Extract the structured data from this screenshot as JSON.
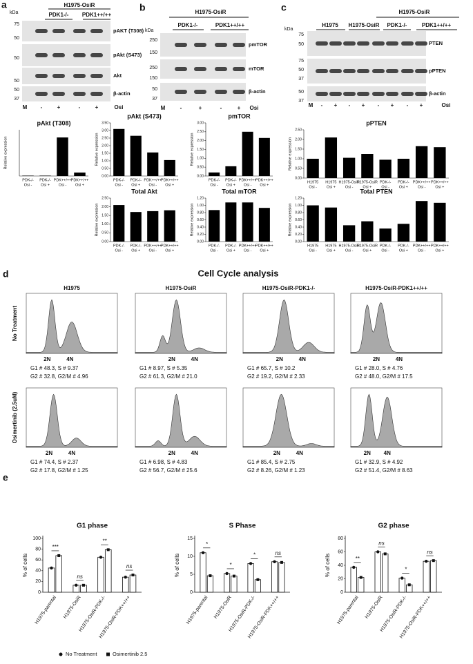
{
  "blots": {
    "panel_a": {
      "letter": "a",
      "cell_line": "H1975-OsiR",
      "groups": [
        "PDK1-/-",
        "PDK1++/++"
      ],
      "kda": "kDa",
      "markers": [
        "75",
        "50",
        "50",
        "50",
        "50",
        "37"
      ],
      "bands": [
        "pAKT (T308)",
        "pAkt (S473)",
        "Akt",
        "β-actin"
      ],
      "lane_m": "M",
      "lanes": [
        "-",
        "+",
        "-",
        "+"
      ],
      "treatment": "Osi"
    },
    "panel_b": {
      "letter": "b",
      "cell_line": "H1975-OsiR",
      "groups": [
        "PDK1-/-",
        "PDK1++/++"
      ],
      "kda": "kDa",
      "markers": [
        "250",
        "150",
        "250",
        "150",
        "50",
        "37"
      ],
      "bands": [
        "pmTOR",
        "mTOR",
        "β-actin"
      ],
      "lane_m": "M",
      "lanes": [
        "-",
        "+",
        "-",
        "+"
      ],
      "treatment": "Osi"
    },
    "panel_c": {
      "letter": "c",
      "cell_line": "H1975-OsiR",
      "groups": [
        "H1975",
        "H1975-OsiR",
        "PDK1-/-",
        "PDK1++/++"
      ],
      "kda": "kDa",
      "markers": [
        "75",
        "50",
        "75",
        "50",
        "37",
        "50",
        "37"
      ],
      "bands": [
        "PTEN",
        "pPTEN",
        "β-actin"
      ],
      "lane_m": "M",
      "lanes": [
        "-",
        "+",
        "-",
        "+",
        "-",
        "+",
        "-",
        "+"
      ],
      "treatment": "Osi"
    }
  },
  "chart_data": [
    {
      "type": "bar",
      "title": "pAkt (T308)",
      "y_label": "Relative expression",
      "categories": [
        [
          "PDK-/-",
          "Osi -"
        ],
        [
          "PDK-/-",
          "Osi +"
        ],
        [
          "PDK++/++",
          "Osi -"
        ],
        [
          "PDK++/++",
          "Osi +"
        ]
      ],
      "values": [
        0.01,
        0.01,
        1.0,
        0.09
      ],
      "color": "#000000",
      "ylim": [
        0,
        1.2
      ]
    },
    {
      "type": "bar",
      "title": "pAkt (S473)",
      "y_label": "Relative expression",
      "categories": [
        [
          "PDK-/-",
          "Osi -"
        ],
        [
          "PDK-/-",
          "Osi +"
        ],
        [
          "PDK++/++",
          "Osi -"
        ],
        [
          "PDK++/++",
          "Osi +"
        ]
      ],
      "values": [
        3.1,
        2.65,
        1.55,
        1.05
      ],
      "color": "#000000",
      "ylim": [
        0,
        3.5
      ],
      "yticks": [
        {
          "value": 0,
          "label": "0.00"
        },
        {
          "value": 0.5,
          "label": "0.50"
        },
        {
          "value": 1,
          "label": "1.00"
        },
        {
          "value": 1.5,
          "label": "1.50"
        },
        {
          "value": 2,
          "label": "2.00"
        },
        {
          "value": 2.5,
          "label": "2.50"
        },
        {
          "value": 3,
          "label": "3.00"
        },
        {
          "value": 3.5,
          "label": "3.50"
        }
      ]
    },
    {
      "type": "bar",
      "title": "pmTOR",
      "y_label": "Relative expression",
      "categories": [
        [
          "PDK-/-",
          "Osi -"
        ],
        [
          "PDK-/-",
          "Osi +"
        ],
        [
          "PDK++/++",
          "Osi -"
        ],
        [
          "PDK++/++",
          "Osi +"
        ]
      ],
      "values": [
        0.2,
        0.55,
        2.5,
        2.15
      ],
      "color": "#000000",
      "ylim": [
        0,
        3
      ],
      "yticks": [
        {
          "value": 0,
          "label": "0.00"
        },
        {
          "value": 0.5,
          "label": "0.50"
        },
        {
          "value": 1,
          "label": "1.00"
        },
        {
          "value": 1.5,
          "label": "1.50"
        },
        {
          "value": 2,
          "label": "2.00"
        },
        {
          "value": 2.5,
          "label": "2.50"
        },
        {
          "value": 3,
          "label": "3.00"
        }
      ]
    },
    {
      "type": "bar",
      "title": "pPTEN",
      "y_label": "Relative expression",
      "categories": [
        [
          "H1975",
          "Osi -"
        ],
        [
          "H1975",
          "Osi +"
        ],
        [
          "H1975-OsiR",
          "Osi -"
        ],
        [
          "H1975-OsiR",
          "Osi +"
        ],
        [
          "PDK-/-",
          "Osi -"
        ],
        [
          "PDK-/-",
          "Osi +"
        ],
        [
          "PDK++/++",
          "Osi -"
        ],
        [
          "PDK++/++",
          "Osi +"
        ]
      ],
      "values": [
        1.0,
        2.1,
        1.05,
        1.25,
        0.95,
        1.0,
        1.65,
        1.6
      ],
      "color": "#000000",
      "ylim": [
        0,
        2.5
      ],
      "yticks": [
        {
          "value": 0,
          "label": "0.00"
        },
        {
          "value": 0.5,
          "label": "0.50"
        },
        {
          "value": 1,
          "label": "1.00"
        },
        {
          "value": 1.5,
          "label": "1.50"
        },
        {
          "value": 2,
          "label": "2.00"
        },
        {
          "value": 2.5,
          "label": "2.50"
        }
      ]
    },
    {
      "type": "bar",
      "title": "Total Akt",
      "y_label": "Relative expression",
      "categories": [
        [
          "PDK-/-",
          "Osi -"
        ],
        [
          "PDK-/-",
          "Osi +"
        ],
        [
          "PDK++/++",
          "Osi -"
        ],
        [
          "PDK++/++",
          "Osi +"
        ]
      ],
      "values": [
        2.1,
        1.7,
        1.75,
        1.8
      ],
      "color": "#000000",
      "ylim": [
        0,
        2.5
      ],
      "yticks": [
        {
          "value": 0,
          "label": "0.00"
        },
        {
          "value": 0.5,
          "label": "0.50"
        },
        {
          "value": 1,
          "label": "1.00"
        },
        {
          "value": 1.5,
          "label": "1.50"
        },
        {
          "value": 2,
          "label": "2.00"
        },
        {
          "value": 2.5,
          "label": "2.50"
        }
      ]
    },
    {
      "type": "bar",
      "title": "Total mTOR",
      "y_label": "Relative expression",
      "categories": [
        [
          "PDK-/-",
          "Osi -"
        ],
        [
          "PDK-/-",
          "Osi +"
        ],
        [
          "PDK++/++",
          "Osi -"
        ],
        [
          "PDK++/++",
          "Osi +"
        ]
      ],
      "values": [
        0.87,
        1.08,
        1.08,
        0.93
      ],
      "color": "#000000",
      "ylim": [
        0,
        1.2
      ],
      "yticks": [
        {
          "value": 0,
          "label": "0.00"
        },
        {
          "value": 0.2,
          "label": "0.20"
        },
        {
          "value": 0.4,
          "label": "0.40"
        },
        {
          "value": 0.6,
          "label": "0.60"
        },
        {
          "value": 0.8,
          "label": "0.80"
        },
        {
          "value": 1,
          "label": "1.00"
        },
        {
          "value": 1.2,
          "label": "1.20"
        }
      ]
    },
    {
      "type": "bar",
      "title": "Total PTEN",
      "y_label": "Relative expression",
      "categories": [
        [
          "H1975",
          "Osi -"
        ],
        [
          "H1975",
          "Osi +"
        ],
        [
          "H1975-OsiR",
          "Osi -"
        ],
        [
          "H1975-OsiR",
          "Osi +"
        ],
        [
          "PDK-/-",
          "Osi -"
        ],
        [
          "PDK-/-",
          "Osi +"
        ],
        [
          "PDK++/++",
          "Osi -"
        ],
        [
          "PDK++/++",
          "Osi +"
        ]
      ],
      "values": [
        1.0,
        0.94,
        0.45,
        0.56,
        0.36,
        0.49,
        1.12,
        1.07
      ],
      "color": "#000000",
      "ylim": [
        0,
        1.2
      ],
      "yticks": [
        {
          "value": 0,
          "label": "0.00"
        },
        {
          "value": 0.2,
          "label": "0.20"
        },
        {
          "value": 0.4,
          "label": "0.40"
        },
        {
          "value": 0.6,
          "label": "0.60"
        },
        {
          "value": 0.8,
          "label": "0.80"
        },
        {
          "value": 1,
          "label": "1.00"
        },
        {
          "value": 1.2,
          "label": "1.20"
        }
      ]
    },
    {
      "type": "grouped_bar",
      "title": "G1 phase",
      "y_label": "% of cells",
      "categories": [
        "H1975-parental",
        "H1975-OsiR",
        "H1975-OsiR-PDK-/-",
        "H1975-OsiR-PDK++/++"
      ],
      "series": [
        {
          "name": "No Treatment",
          "color": "#ffffff",
          "values": [
            45,
            13,
            65,
            28
          ]
        },
        {
          "name": "Osimertinib 2.5",
          "color": "#ffffff",
          "values": [
            68,
            13,
            79,
            32
          ]
        }
      ],
      "significance": [
        "***",
        "ns",
        "**",
        "ns"
      ],
      "ylim": [
        0,
        100
      ],
      "yticks": [
        0,
        20,
        40,
        60,
        80,
        100
      ]
    },
    {
      "type": "grouped_bar",
      "title": "S Phase",
      "y_label": "% of cells",
      "categories": [
        "H1975-parental",
        "H1975-OsiR",
        "H1975-OsiR-PDK-/-",
        "H1975-OsiR-PDK++/++"
      ],
      "series": [
        {
          "color": "#ffffff",
          "values": [
            11,
            5.2,
            8,
            8.5
          ]
        },
        {
          "color": "#ffffff",
          "values": [
            4.6,
            4.5,
            3.5,
            8.3
          ]
        }
      ],
      "significance": [
        "*",
        "*",
        "*",
        "ns"
      ],
      "ylim": [
        0,
        15
      ],
      "yticks": [
        0,
        5,
        10,
        15
      ]
    },
    {
      "type": "grouped_bar",
      "title": "G2 phase",
      "y_label": "% of cells",
      "categories": [
        "H1975-parental",
        "H1975-OsiR",
        "H1975-OsiR-PDK-/-",
        "H1975-OsiR-PDK++/++"
      ],
      "series": [
        {
          "color": "#ffffff",
          "values": [
            37,
            60,
            21,
            46
          ]
        },
        {
          "color": "#ffffff",
          "values": [
            22,
            57,
            11,
            47
          ]
        }
      ],
      "significance": [
        "**",
        "ns",
        "*",
        "ns"
      ],
      "ylim": [
        0,
        80
      ],
      "yticks": [
        0,
        20,
        40,
        60,
        80
      ]
    }
  ],
  "cell_cycle": {
    "letter": "d",
    "title": "Cell Cycle analysis",
    "columns": [
      "H1975",
      "H1975-OsiR",
      "H1975-OsiR-PDK1-/-",
      "H1975-OsiR-PDK1++/++"
    ],
    "ploidy": [
      "2N",
      "4N"
    ],
    "rows": [
      {
        "label": "No Treatment",
        "summaries": [
          [
            "G1 # 48.3, S # 9.37",
            "G2 # 32.8, G2/M # 4.96"
          ],
          [
            "G1 # 8.97, S # 5.35",
            "G2 # 61.3, G2/M # 21.0"
          ],
          [
            "G1 # 65.7, S # 10.2",
            "G2 # 19.2, G2/M # 2.33"
          ],
          [
            "G1 # 28.0, S # 4.76",
            "G2 # 48.0, G2/M # 17.5"
          ]
        ]
      },
      {
        "label": "Osimertinib (2.5uM)",
        "summaries": [
          [
            "G1 # 74.4, S # 2.37",
            "G2 # 17.8, G2/M # 1.25"
          ],
          [
            "G1 # 6.98, S # 4.83",
            "G2 # 56.7, G2/M # 25.6"
          ],
          [
            "G1 # 85.4, S # 2.75",
            "G2 # 8.26, G2/M # 1.23"
          ],
          [
            "G1 # 32.9, S # 4.92",
            "G2 # 51.4, G2/M # 8.63"
          ]
        ]
      }
    ]
  },
  "panel_e": {
    "letter": "e"
  }
}
